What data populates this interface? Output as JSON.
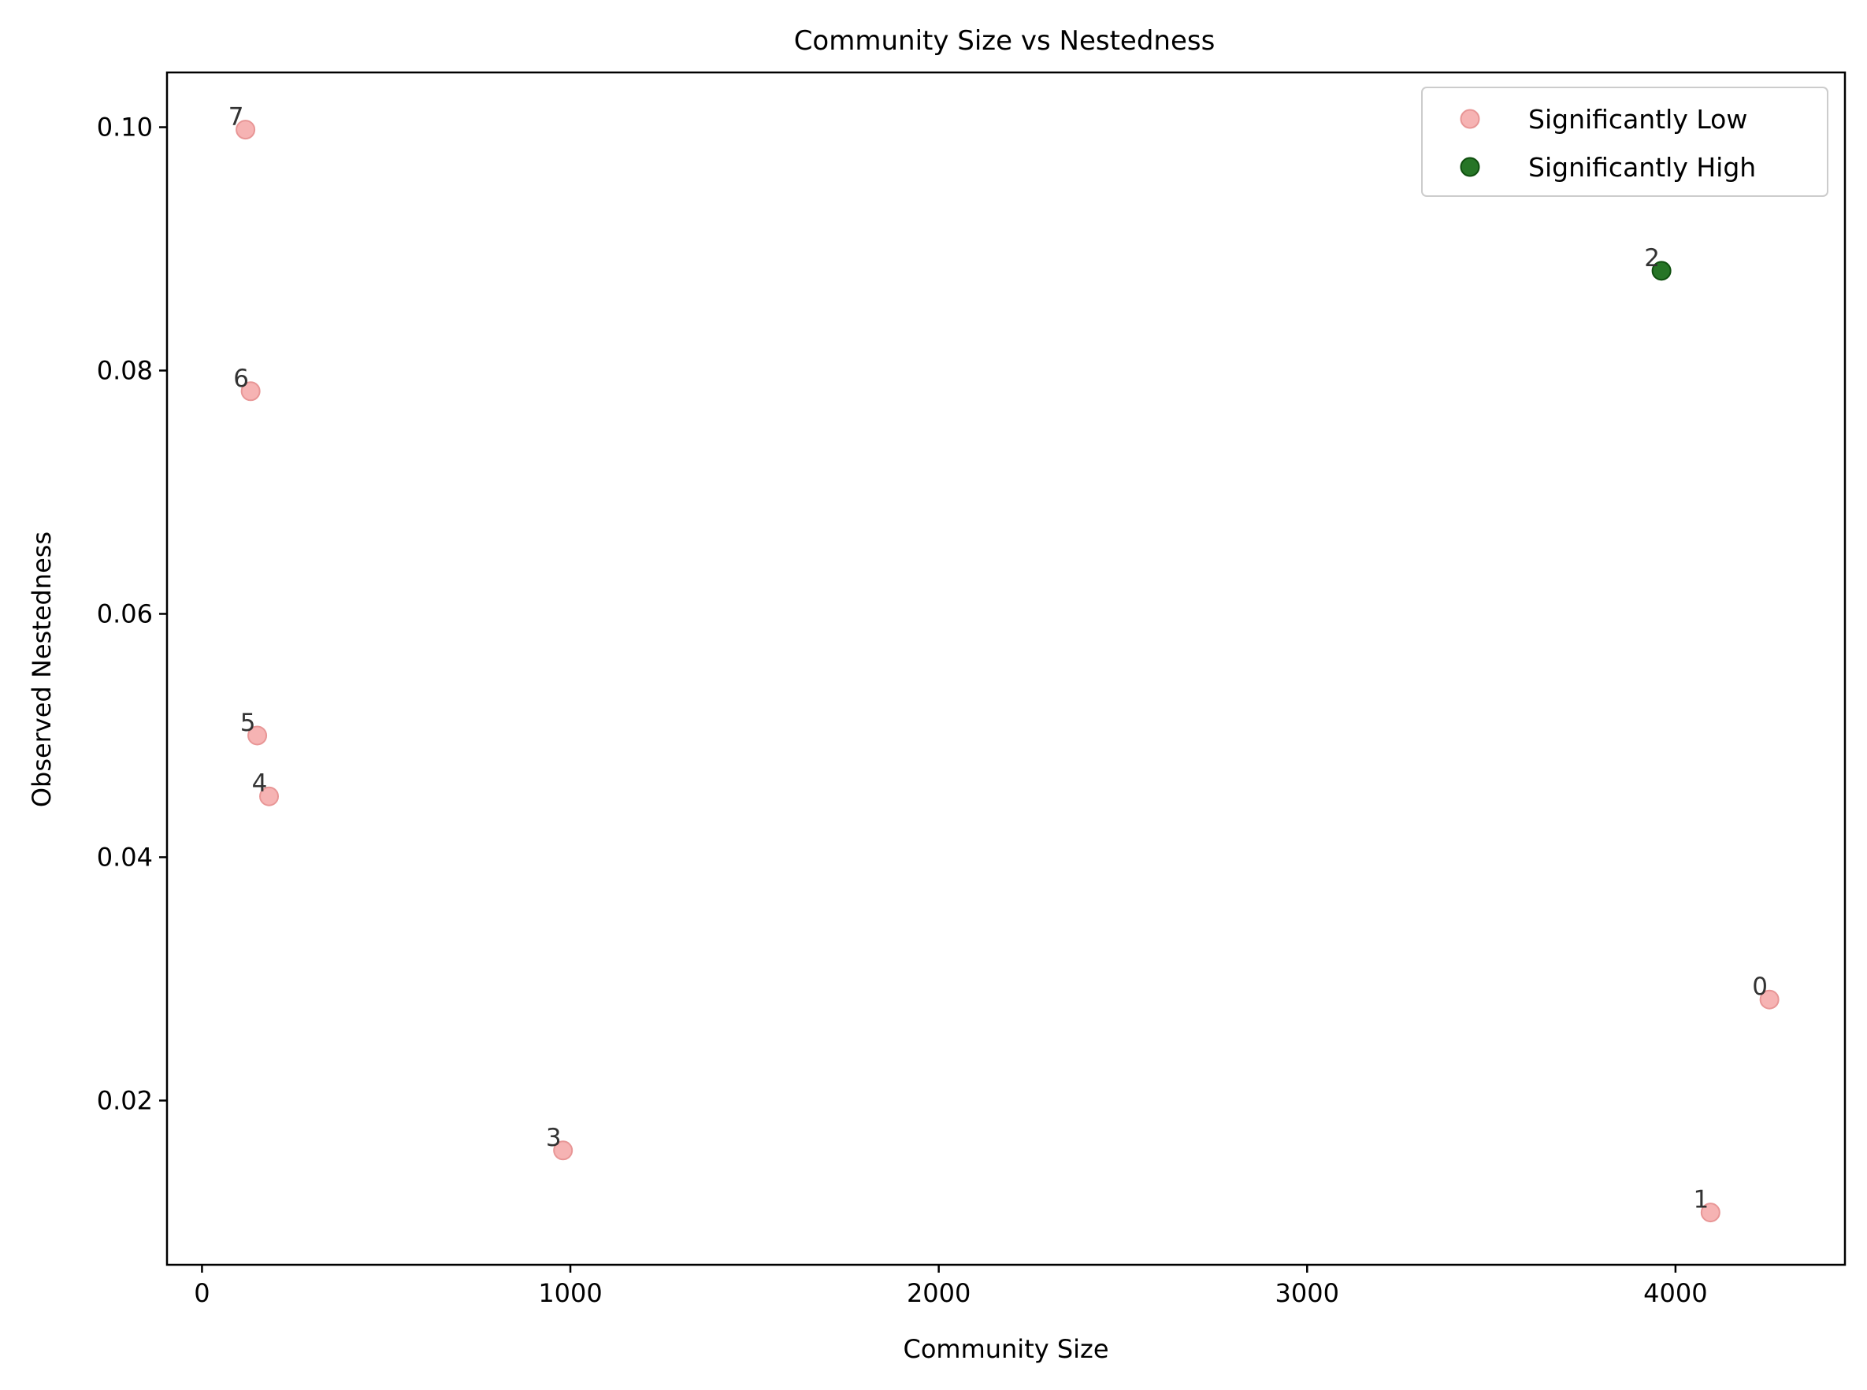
{
  "chart_data": {
    "type": "scatter",
    "title": "Community Size vs Nestedness",
    "xlabel": "Community Size",
    "ylabel": "Observed Nestedness",
    "xlim": [
      -95,
      4460
    ],
    "ylim": [
      0.0065,
      0.1045
    ],
    "xticks": [
      {
        "value": 0,
        "label": "0"
      },
      {
        "value": 1000,
        "label": "1000"
      },
      {
        "value": 2000,
        "label": "2000"
      },
      {
        "value": 3000,
        "label": "3000"
      },
      {
        "value": 4000,
        "label": "4000"
      }
    ],
    "yticks": [
      {
        "value": 0.02,
        "label": "0.02"
      },
      {
        "value": 0.04,
        "label": "0.04"
      },
      {
        "value": 0.06,
        "label": "0.06"
      },
      {
        "value": 0.08,
        "label": "0.08"
      },
      {
        "value": 0.1,
        "label": "0.10"
      }
    ],
    "grid": false,
    "legend_position": "top-right",
    "series": [
      {
        "name": "Significantly Low",
        "color": "#f4a6a6",
        "points": [
          {
            "label": "0",
            "x": 4255,
            "y": 0.0283
          },
          {
            "label": "1",
            "x": 4095,
            "y": 0.0108
          },
          {
            "label": "3",
            "x": 980,
            "y": 0.0159
          },
          {
            "label": "4",
            "x": 182,
            "y": 0.045
          },
          {
            "label": "5",
            "x": 150,
            "y": 0.05
          },
          {
            "label": "6",
            "x": 132,
            "y": 0.0783
          },
          {
            "label": "7",
            "x": 118,
            "y": 0.0998
          }
        ]
      },
      {
        "name": "Significantly High",
        "color": "#1a6e1a",
        "points": [
          {
            "label": "2",
            "x": 3962,
            "y": 0.0882
          }
        ]
      }
    ]
  }
}
